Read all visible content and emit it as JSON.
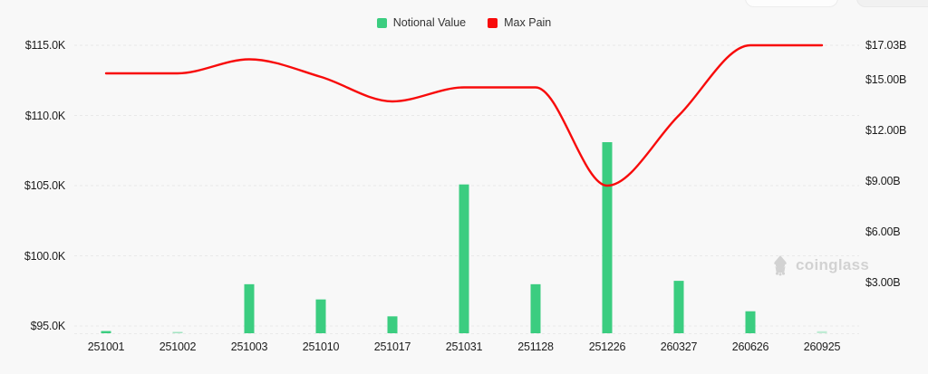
{
  "legend": {
    "items": [
      {
        "label": "Notional Value",
        "color": "#3bcd80"
      },
      {
        "label": "Max Pain",
        "color": "#f80b0b"
      }
    ]
  },
  "watermark": {
    "text": "coinglass"
  },
  "colors": {
    "background": "#f8f8f8",
    "bar": "#3bcd80",
    "line": "#f80b0b",
    "grid": "#e9e9e9",
    "axis_text": "#1d1d1d",
    "watermark": "#d2d2d2"
  },
  "chart_data": {
    "type": "bar",
    "title": "",
    "categories": [
      "251001",
      "251002",
      "251003",
      "251010",
      "251017",
      "251031",
      "251128",
      "251226",
      "260327",
      "260626",
      "260925"
    ],
    "series": [
      {
        "name": "Notional Value",
        "type": "bar",
        "axis": "right",
        "unit": "USD billions",
        "values": [
          0.13,
          0.07,
          2.9,
          2.0,
          1.0,
          8.8,
          2.9,
          11.3,
          3.1,
          1.3,
          0.12
        ],
        "bar_opacity": [
          1,
          0.45,
          1,
          1,
          1,
          1,
          1,
          1,
          1,
          1,
          0.3
        ]
      },
      {
        "name": "Max Pain",
        "type": "line",
        "axis": "left",
        "unit": "USD thousands",
        "values": [
          113.0,
          113.0,
          114.0,
          112.75,
          111.0,
          112.0,
          112.0,
          105.0,
          110.0,
          115.0,
          115.0
        ]
      }
    ],
    "left_axis": {
      "ticks": [
        "$115.0K",
        "$110.0K",
        "$105.0K",
        "$100.0K",
        "$95.0K"
      ],
      "tick_values": [
        115,
        110,
        105,
        100,
        95
      ],
      "range": [
        94.5,
        115
      ]
    },
    "right_axis": {
      "ticks": [
        "$17.03B",
        "$15.00B",
        "$12.00B",
        "$9.00B",
        "$6.00B",
        "$3.00B"
      ],
      "tick_values": [
        17.03,
        15,
        12,
        9,
        6,
        3
      ],
      "range": [
        0,
        17.03
      ]
    },
    "xlabel": "",
    "ylabel_left": "Max Pain price",
    "ylabel_right": "Notional Value",
    "grid": "horizontal-dashed",
    "legend_position": "top-center",
    "line_smooth": true
  }
}
